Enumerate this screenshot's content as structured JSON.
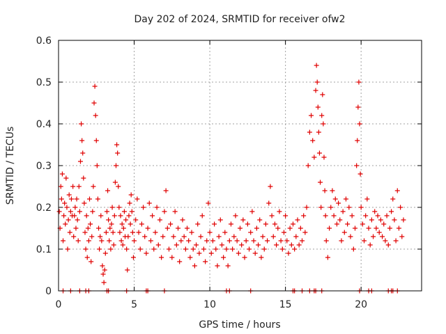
{
  "chart_data": {
    "type": "scatter",
    "title": "Day 202 of 2024, SRMTID for receiver ofw2",
    "xlabel": "GPS time / hours",
    "ylabel": "SRMTID / TECUs",
    "xlim": [
      0,
      24
    ],
    "ylim": [
      0,
      0.6
    ],
    "xticks": [
      0,
      5,
      10,
      15,
      20
    ],
    "xtick_labels": [
      "0",
      "5",
      "10",
      "15",
      "20"
    ],
    "yticks": [
      0,
      0.1,
      0.2,
      0.3,
      0.4,
      0.5,
      0.6
    ],
    "ytick_labels": [
      "0",
      "0.1",
      "0.2",
      "0.3",
      "0.4",
      "0.5",
      "0.6"
    ],
    "grid": true,
    "marker": "+",
    "series": [
      {
        "name": "ofw2",
        "color": "#e00000",
        "points": [
          [
            0.05,
            0.19
          ],
          [
            0.1,
            0.15
          ],
          [
            0.15,
            0.25
          ],
          [
            0.2,
            0.22
          ],
          [
            0.25,
            0.28
          ],
          [
            0.3,
            0.12
          ],
          [
            0.35,
            0.18
          ],
          [
            0.4,
            0.21
          ],
          [
            0.45,
            0.16
          ],
          [
            0.5,
            0.27
          ],
          [
            0.55,
            0.2
          ],
          [
            0.6,
            0.1
          ],
          [
            0.65,
            0.17
          ],
          [
            0.7,
            0.23
          ],
          [
            0.75,
            0.14
          ],
          [
            0.8,
            0.19
          ],
          [
            0.85,
            0.22
          ],
          [
            0.9,
            0.18
          ],
          [
            0.95,
            0.25
          ],
          [
            1.0,
            0.13
          ],
          [
            1.05,
            0.18
          ],
          [
            1.1,
            0.2
          ],
          [
            1.15,
            0.15
          ],
          [
            1.2,
            0.22
          ],
          [
            1.25,
            0.17
          ],
          [
            1.3,
            0.12
          ],
          [
            1.35,
            0.25
          ],
          [
            1.4,
            0.19
          ],
          [
            1.45,
            0.31
          ],
          [
            1.5,
            0.4
          ],
          [
            1.55,
            0.36
          ],
          [
            1.6,
            0.33
          ],
          [
            1.65,
            0.27
          ],
          [
            1.7,
            0.21
          ],
          [
            1.75,
            0.14
          ],
          [
            1.8,
            0.1
          ],
          [
            1.85,
            0.18
          ],
          [
            1.9,
            0.08
          ],
          [
            1.95,
            0.15
          ],
          [
            2.0,
            0.12
          ],
          [
            2.05,
            0.22
          ],
          [
            2.1,
            0.16
          ],
          [
            2.15,
            0.07
          ],
          [
            2.2,
            0.13
          ],
          [
            2.25,
            0.19
          ],
          [
            2.3,
            0.25
          ],
          [
            2.35,
            0.45
          ],
          [
            2.4,
            0.49
          ],
          [
            2.45,
            0.42
          ],
          [
            2.5,
            0.36
          ],
          [
            2.55,
            0.3
          ],
          [
            2.6,
            0.22
          ],
          [
            2.65,
            0.15
          ],
          [
            2.7,
            0.1
          ],
          [
            2.75,
            0.13
          ],
          [
            2.8,
            0.18
          ],
          [
            2.85,
            0.12
          ],
          [
            2.9,
            0.06
          ],
          [
            2.95,
            0.04
          ],
          [
            3.0,
            0.02
          ],
          [
            3.05,
            0.05
          ],
          [
            3.1,
            0.09
          ],
          [
            3.15,
            0.14
          ],
          [
            3.2,
            0.19
          ],
          [
            3.25,
            0.24
          ],
          [
            3.3,
            0.17
          ],
          [
            3.35,
            0.12
          ],
          [
            3.4,
            0.15
          ],
          [
            3.45,
            0.1
          ],
          [
            3.5,
            0.16
          ],
          [
            3.55,
            0.2
          ],
          [
            3.6,
            0.14
          ],
          [
            3.65,
            0.11
          ],
          [
            3.7,
            0.18
          ],
          [
            3.75,
            0.26
          ],
          [
            3.8,
            0.3
          ],
          [
            3.85,
            0.35
          ],
          [
            3.9,
            0.33
          ],
          [
            3.95,
            0.25
          ],
          [
            4.0,
            0.2
          ],
          [
            4.05,
            0.14
          ],
          [
            4.1,
            0.18
          ],
          [
            4.15,
            0.12
          ],
          [
            4.2,
            0.16
          ],
          [
            4.25,
            0.11
          ],
          [
            4.3,
            0.15
          ],
          [
            4.35,
            0.19
          ],
          [
            4.4,
            0.13
          ],
          [
            4.45,
            0.17
          ],
          [
            4.5,
            0.1
          ],
          [
            4.55,
            0.05
          ],
          [
            4.6,
            0.13
          ],
          [
            4.65,
            0.18
          ],
          [
            4.7,
            0.21
          ],
          [
            4.75,
            0.16
          ],
          [
            4.8,
            0.23
          ],
          [
            4.85,
            0.19
          ],
          [
            4.9,
            0.14
          ],
          [
            4.95,
            0.08
          ],
          [
            5.0,
            0.12
          ],
          [
            5.1,
            0.17
          ],
          [
            5.2,
            0.22
          ],
          [
            5.3,
            0.14
          ],
          [
            5.4,
            0.1
          ],
          [
            5.5,
            0.16
          ],
          [
            5.6,
            0.2
          ],
          [
            5.7,
            0.13
          ],
          [
            5.8,
            0.09
          ],
          [
            5.9,
            0.15
          ],
          [
            6.0,
            0.21
          ],
          [
            6.1,
            0.12
          ],
          [
            6.2,
            0.18
          ],
          [
            6.3,
            0.1
          ],
          [
            6.4,
            0.14
          ],
          [
            6.5,
            0.2
          ],
          [
            6.6,
            0.11
          ],
          [
            6.7,
            0.17
          ],
          [
            6.8,
            0.08
          ],
          [
            6.9,
            0.13
          ],
          [
            7.0,
            0.19
          ],
          [
            7.1,
            0.24
          ],
          [
            7.2,
            0.15
          ],
          [
            7.3,
            0.1
          ],
          [
            7.4,
            0.16
          ],
          [
            7.5,
            0.08
          ],
          [
            7.6,
            0.13
          ],
          [
            7.7,
            0.19
          ],
          [
            7.8,
            0.11
          ],
          [
            7.9,
            0.15
          ],
          [
            8.0,
            0.07
          ],
          [
            8.1,
            0.12
          ],
          [
            8.2,
            0.17
          ],
          [
            8.3,
            0.13
          ],
          [
            8.4,
            0.1
          ],
          [
            8.5,
            0.15
          ],
          [
            8.6,
            0.12
          ],
          [
            8.7,
            0.08
          ],
          [
            8.8,
            0.14
          ],
          [
            8.9,
            0.1
          ],
          [
            9.0,
            0.06
          ],
          [
            9.1,
            0.11
          ],
          [
            9.2,
            0.16
          ],
          [
            9.3,
            0.09
          ],
          [
            9.4,
            0.13
          ],
          [
            9.5,
            0.18
          ],
          [
            9.6,
            0.1
          ],
          [
            9.7,
            0.07
          ],
          [
            9.8,
            0.12
          ],
          [
            9.9,
            0.21
          ],
          [
            10.0,
            0.14
          ],
          [
            10.1,
            0.09
          ],
          [
            10.2,
            0.12
          ],
          [
            10.3,
            0.16
          ],
          [
            10.4,
            0.1
          ],
          [
            10.5,
            0.06
          ],
          [
            10.6,
            0.13
          ],
          [
            10.7,
            0.17
          ],
          [
            10.8,
            0.11
          ],
          [
            10.9,
            0.08
          ],
          [
            11.0,
            0.14
          ],
          [
            11.1,
            0.1
          ],
          [
            11.2,
            0.06
          ],
          [
            11.3,
            0.12
          ],
          [
            11.4,
            0.16
          ],
          [
            11.5,
            0.1
          ],
          [
            11.6,
            0.13
          ],
          [
            11.7,
            0.18
          ],
          [
            11.8,
            0.12
          ],
          [
            11.9,
            0.09
          ],
          [
            12.0,
            0.15
          ],
          [
            12.1,
            0.11
          ],
          [
            12.2,
            0.17
          ],
          [
            12.3,
            0.08
          ],
          [
            12.4,
            0.12
          ],
          [
            12.5,
            0.16
          ],
          [
            12.6,
            0.1
          ],
          [
            12.7,
            0.14
          ],
          [
            12.8,
            0.19
          ],
          [
            12.9,
            0.12
          ],
          [
            13.0,
            0.09
          ],
          [
            13.1,
            0.15
          ],
          [
            13.2,
            0.11
          ],
          [
            13.3,
            0.17
          ],
          [
            13.4,
            0.08
          ],
          [
            13.5,
            0.13
          ],
          [
            13.6,
            0.1
          ],
          [
            13.7,
            0.16
          ],
          [
            13.8,
            0.12
          ],
          [
            13.9,
            0.21
          ],
          [
            14.0,
            0.25
          ],
          [
            14.1,
            0.18
          ],
          [
            14.2,
            0.13
          ],
          [
            14.3,
            0.16
          ],
          [
            14.4,
            0.11
          ],
          [
            14.5,
            0.15
          ],
          [
            14.6,
            0.19
          ],
          [
            14.7,
            0.12
          ],
          [
            14.8,
            0.1
          ],
          [
            14.9,
            0.14
          ],
          [
            15.0,
            0.18
          ],
          [
            15.1,
            0.12
          ],
          [
            15.2,
            0.09
          ],
          [
            15.3,
            0.15
          ],
          [
            15.4,
            0.11
          ],
          [
            15.5,
            0.16
          ],
          [
            15.6,
            0.1
          ],
          [
            15.7,
            0.13
          ],
          [
            15.8,
            0.17
          ],
          [
            15.9,
            0.11
          ],
          [
            16.0,
            0.15
          ],
          [
            16.1,
            0.12
          ],
          [
            16.2,
            0.18
          ],
          [
            16.3,
            0.14
          ],
          [
            16.4,
            0.2
          ],
          [
            16.5,
            0.3
          ],
          [
            16.6,
            0.38
          ],
          [
            16.7,
            0.42
          ],
          [
            16.8,
            0.36
          ],
          [
            16.9,
            0.32
          ],
          [
            17.0,
            0.48
          ],
          [
            17.05,
            0.54
          ],
          [
            17.1,
            0.5
          ],
          [
            17.15,
            0.44
          ],
          [
            17.2,
            0.38
          ],
          [
            17.25,
            0.33
          ],
          [
            17.3,
            0.26
          ],
          [
            17.35,
            0.2
          ],
          [
            17.4,
            0.42
          ],
          [
            17.45,
            0.47
          ],
          [
            17.5,
            0.4
          ],
          [
            17.55,
            0.32
          ],
          [
            17.6,
            0.24
          ],
          [
            17.65,
            0.18
          ],
          [
            17.7,
            0.12
          ],
          [
            17.8,
            0.08
          ],
          [
            17.9,
            0.15
          ],
          [
            18.0,
            0.2
          ],
          [
            18.1,
            0.24
          ],
          [
            18.2,
            0.18
          ],
          [
            18.3,
            0.22
          ],
          [
            18.4,
            0.16
          ],
          [
            18.5,
            0.21
          ],
          [
            18.6,
            0.17
          ],
          [
            18.7,
            0.12
          ],
          [
            18.8,
            0.19
          ],
          [
            18.9,
            0.14
          ],
          [
            19.0,
            0.22
          ],
          [
            19.1,
            0.16
          ],
          [
            19.2,
            0.2
          ],
          [
            19.3,
            0.13
          ],
          [
            19.4,
            0.18
          ],
          [
            19.5,
            0.1
          ],
          [
            19.6,
            0.15
          ],
          [
            19.7,
            0.3
          ],
          [
            19.75,
            0.36
          ],
          [
            19.8,
            0.44
          ],
          [
            19.85,
            0.5
          ],
          [
            19.9,
            0.4
          ],
          [
            19.95,
            0.28
          ],
          [
            20.0,
            0.2
          ],
          [
            20.1,
            0.16
          ],
          [
            20.2,
            0.12
          ],
          [
            20.3,
            0.18
          ],
          [
            20.4,
            0.22
          ],
          [
            20.5,
            0.15
          ],
          [
            20.6,
            0.11
          ],
          [
            20.7,
            0.17
          ],
          [
            20.8,
            0.13
          ],
          [
            20.9,
            0.19
          ],
          [
            21.0,
            0.15
          ],
          [
            21.1,
            0.18
          ],
          [
            21.2,
            0.14
          ],
          [
            21.3,
            0.17
          ],
          [
            21.4,
            0.13
          ],
          [
            21.5,
            0.16
          ],
          [
            21.6,
            0.12
          ],
          [
            21.7,
            0.18
          ],
          [
            21.8,
            0.11
          ],
          [
            21.9,
            0.15
          ],
          [
            22.0,
            0.19
          ],
          [
            22.1,
            0.22
          ],
          [
            22.2,
            0.17
          ],
          [
            22.3,
            0.12
          ],
          [
            22.4,
            0.24
          ],
          [
            22.5,
            0.15
          ],
          [
            22.6,
            0.2
          ],
          [
            22.7,
            0.13
          ],
          [
            22.8,
            0.17
          ],
          [
            0.3,
            0.0
          ],
          [
            0.8,
            0.0
          ],
          [
            1.4,
            0.0
          ],
          [
            1.8,
            0.0
          ],
          [
            2.0,
            0.0
          ],
          [
            3.2,
            0.0
          ],
          [
            3.3,
            0.0
          ],
          [
            4.5,
            0.0
          ],
          [
            5.8,
            0.0
          ],
          [
            5.9,
            0.0
          ],
          [
            7.0,
            0.0
          ],
          [
            11.1,
            0.0
          ],
          [
            11.3,
            0.0
          ],
          [
            12.7,
            0.0
          ],
          [
            15.5,
            0.0
          ],
          [
            15.6,
            0.0
          ],
          [
            16.1,
            0.0
          ],
          [
            16.6,
            0.0
          ],
          [
            16.9,
            0.0
          ],
          [
            17.0,
            0.0
          ],
          [
            17.4,
            0.0
          ],
          [
            19.9,
            0.0
          ],
          [
            20.5,
            0.0
          ],
          [
            20.7,
            0.0
          ],
          [
            21.8,
            0.0
          ],
          [
            22.0,
            0.0
          ],
          [
            22.1,
            0.0
          ],
          [
            22.4,
            0.0
          ]
        ]
      }
    ]
  }
}
